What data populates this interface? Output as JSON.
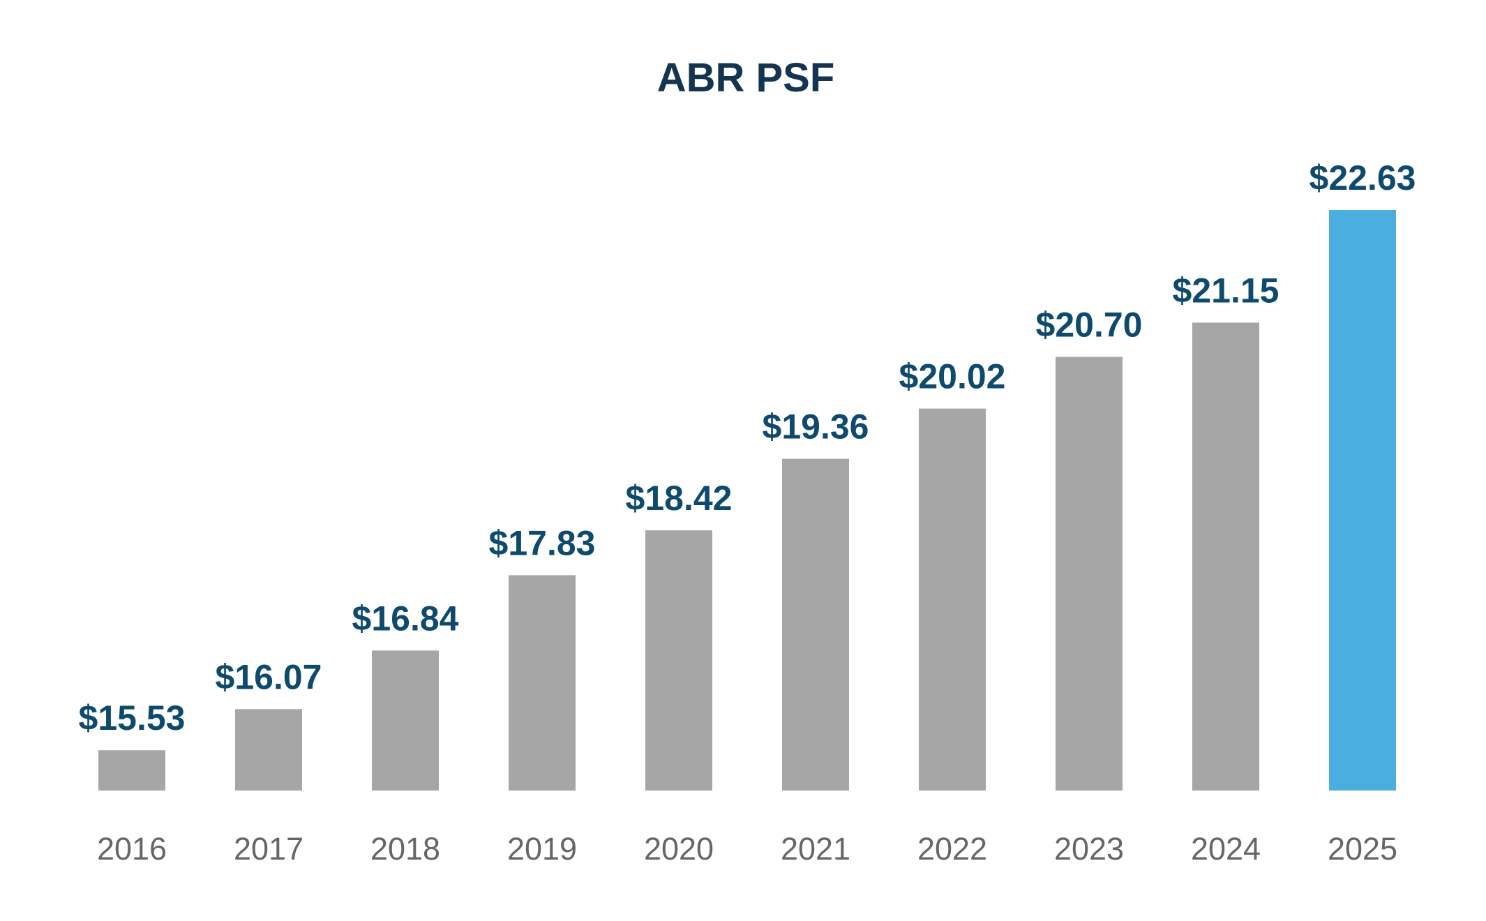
{
  "chart_data": {
    "type": "bar",
    "title": "ABR PSF",
    "xlabel": "",
    "ylabel": "",
    "categories": [
      "2016",
      "2017",
      "2018",
      "2019",
      "2020",
      "2021",
      "2022",
      "2023",
      "2024",
      "2025"
    ],
    "values": [
      15.53,
      16.07,
      16.84,
      17.83,
      18.42,
      19.36,
      20.02,
      20.7,
      21.15,
      22.63
    ],
    "value_labels": [
      "$15.53",
      "$16.07",
      "$16.84",
      "$17.83",
      "$18.42",
      "$19.36",
      "$20.02",
      "$20.70",
      "$21.15",
      "$22.63"
    ],
    "ylim": [
      15.0,
      22.63
    ],
    "grid": false,
    "legend": "none",
    "colors": {
      "bar_default": "#a7a6a7",
      "bar_highlight": "#4baee0",
      "value_label": "#0e4a6e",
      "title": "#14344f",
      "tick_label": "#666666"
    },
    "highlight_category": "2025"
  }
}
